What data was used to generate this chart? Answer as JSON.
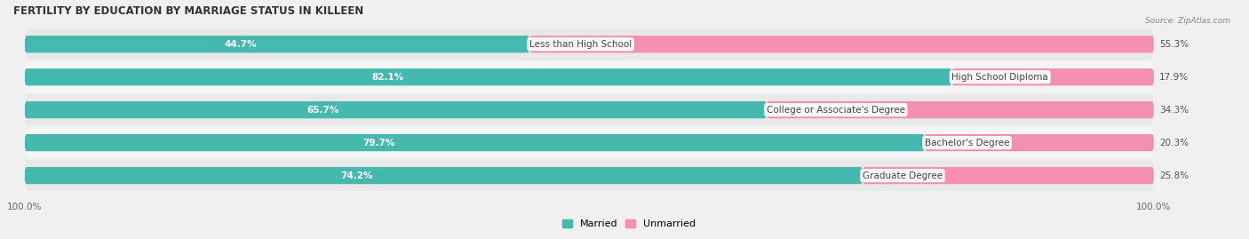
{
  "title": "FERTILITY BY EDUCATION BY MARRIAGE STATUS IN KILLEEN",
  "source": "Source: ZipAtlas.com",
  "categories": [
    "Less than High School",
    "High School Diploma",
    "College or Associate's Degree",
    "Bachelor's Degree",
    "Graduate Degree"
  ],
  "married": [
    44.7,
    82.1,
    65.7,
    79.7,
    74.2
  ],
  "unmarried": [
    55.3,
    17.9,
    34.3,
    20.3,
    25.8
  ],
  "married_color": "#45B8B0",
  "unmarried_color": "#F48FB1",
  "bar_height": 0.52,
  "bg_color": "#f0f0f0",
  "row_bg_colors": [
    "#e8e8e8",
    "#f5f5f5"
  ],
  "title_fontsize": 8.5,
  "label_fontsize": 7.5,
  "bar_label_fontsize": 7.5,
  "legend_fontsize": 8,
  "axis_label_fontsize": 7.5,
  "total_width": 100
}
